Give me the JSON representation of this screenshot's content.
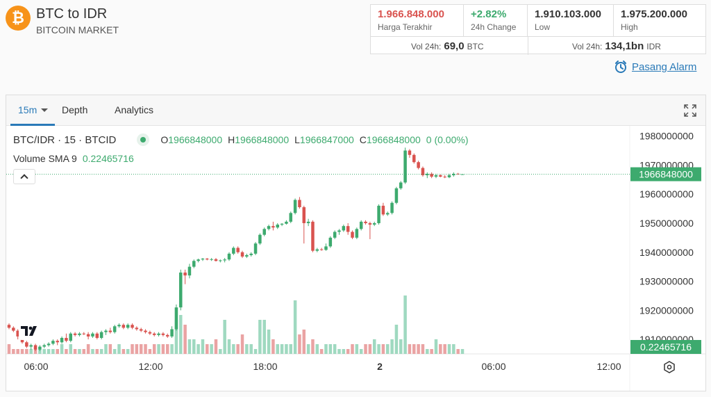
{
  "header": {
    "coin_symbol": "₿",
    "title": "BTC to IDR",
    "subtitle": "BITCOIN MARKET"
  },
  "stats": {
    "last_price": {
      "value": "1.966.848.000",
      "label": "Harga Terakhir"
    },
    "change": {
      "value": "+2.82%",
      "label": "24h Change"
    },
    "low": {
      "value": "1.910.103.000",
      "label": "Low"
    },
    "high": {
      "value": "1.975.200.000",
      "label": "High"
    },
    "vol_btc": {
      "label": "Vol 24h:",
      "value": "69,0",
      "unit": "BTC"
    },
    "vol_idr": {
      "label": "Vol 24h:",
      "value": "134,1bn",
      "unit": "IDR"
    }
  },
  "alarm": {
    "label": "Pasang Alarm",
    "icon": "alarm-clock-icon"
  },
  "toolbar": {
    "timeframe": "15m",
    "depth": "Depth",
    "analytics": "Analytics"
  },
  "legend": {
    "symbol": "BTC/IDR · 15 · BTCID",
    "o_label": "O",
    "o_value": "1966848000",
    "h_label": "H",
    "h_value": "1966848000",
    "l_label": "L",
    "l_value": "1966847000",
    "c_label": "C",
    "c_value": "1966848000",
    "change": "0 (0.00%)",
    "volume_label": "Volume SMA 9",
    "volume_value": "0.22465716"
  },
  "colors": {
    "up": "#3daa6e",
    "down": "#d9534f",
    "up_vol": "#9fd9c0",
    "down_vol": "#eaa3a3",
    "accent": "#2a7ab8"
  },
  "chart_data": {
    "type": "candlestick",
    "y_tick_labels": [
      "1980000000",
      "1970000000",
      "1960000000",
      "1950000000",
      "1940000000",
      "1930000000",
      "1920000000",
      "1910000000"
    ],
    "y_ticks": [
      1980000000,
      1970000000,
      1960000000,
      1950000000,
      1940000000,
      1930000000,
      1920000000,
      1910000000
    ],
    "ylim": [
      1905000000,
      1983500000
    ],
    "x_tick_labels": [
      "06:00",
      "12:00",
      "18:00",
      "2",
      "06:00",
      "12:00"
    ],
    "last_price_label": "1966848000",
    "volume_label": "0.22465716",
    "grid": false,
    "candles": [
      {
        "o": 1915000000,
        "h": 1915500000,
        "l": 1913500000,
        "c": 1914000000
      },
      {
        "o": 1914000000,
        "h": 1914500000,
        "l": 1912500000,
        "c": 1913000000
      },
      {
        "o": 1913000000,
        "h": 1913500000,
        "l": 1910000000,
        "c": 1911000000
      },
      {
        "o": 1911000000,
        "h": 1911500000,
        "l": 1908500000,
        "c": 1909000000
      },
      {
        "o": 1909000000,
        "h": 1909500000,
        "l": 1907000000,
        "c": 1907500000
      },
      {
        "o": 1907500000,
        "h": 1908500000,
        "l": 1906500000,
        "c": 1908000000
      },
      {
        "o": 1908000000,
        "h": 1908500000,
        "l": 1906000000,
        "c": 1906500000
      },
      {
        "o": 1906500000,
        "h": 1908000000,
        "l": 1906000000,
        "c": 1907500000
      },
      {
        "o": 1907500000,
        "h": 1908500000,
        "l": 1907000000,
        "c": 1908000000
      },
      {
        "o": 1908000000,
        "h": 1909000000,
        "l": 1907500000,
        "c": 1908500000
      },
      {
        "o": 1908500000,
        "h": 1910000000,
        "l": 1908000000,
        "c": 1909500000
      },
      {
        "o": 1909500000,
        "h": 1910000000,
        "l": 1908000000,
        "c": 1909000000
      },
      {
        "o": 1909000000,
        "h": 1911000000,
        "l": 1908500000,
        "c": 1910500000
      },
      {
        "o": 1910500000,
        "h": 1912000000,
        "l": 1909000000,
        "c": 1909500000
      },
      {
        "o": 1909500000,
        "h": 1912500000,
        "l": 1909000000,
        "c": 1912000000
      },
      {
        "o": 1912000000,
        "h": 1912500000,
        "l": 1911000000,
        "c": 1911500000
      },
      {
        "o": 1911500000,
        "h": 1912500000,
        "l": 1911000000,
        "c": 1912000000
      },
      {
        "o": 1912000000,
        "h": 1912500000,
        "l": 1911500000,
        "c": 1911800000
      },
      {
        "o": 1911800000,
        "h": 1912500000,
        "l": 1910000000,
        "c": 1911000000
      },
      {
        "o": 1911000000,
        "h": 1912500000,
        "l": 1910500000,
        "c": 1912000000
      },
      {
        "o": 1912000000,
        "h": 1912500000,
        "l": 1910000000,
        "c": 1910500000
      },
      {
        "o": 1910500000,
        "h": 1913000000,
        "l": 1910000000,
        "c": 1912500000
      },
      {
        "o": 1912500000,
        "h": 1913500000,
        "l": 1911500000,
        "c": 1913000000
      },
      {
        "o": 1913000000,
        "h": 1914000000,
        "l": 1912000000,
        "c": 1912500000
      },
      {
        "o": 1912500000,
        "h": 1915000000,
        "l": 1912000000,
        "c": 1914500000
      },
      {
        "o": 1914500000,
        "h": 1915500000,
        "l": 1914000000,
        "c": 1915000000
      },
      {
        "o": 1915000000,
        "h": 1915500000,
        "l": 1913500000,
        "c": 1914000000
      },
      {
        "o": 1914000000,
        "h": 1915500000,
        "l": 1913500000,
        "c": 1915000000
      },
      {
        "o": 1915000000,
        "h": 1915500000,
        "l": 1913500000,
        "c": 1914000000
      },
      {
        "o": 1914000000,
        "h": 1914500000,
        "l": 1913000000,
        "c": 1913500000
      },
      {
        "o": 1913500000,
        "h": 1914000000,
        "l": 1912500000,
        "c": 1913000000
      },
      {
        "o": 1913000000,
        "h": 1913500000,
        "l": 1912000000,
        "c": 1912500000
      },
      {
        "o": 1912500000,
        "h": 1913000000,
        "l": 1911500000,
        "c": 1912000000
      },
      {
        "o": 1912000000,
        "h": 1912500000,
        "l": 1911000000,
        "c": 1911500000
      },
      {
        "o": 1911500000,
        "h": 1912500000,
        "l": 1911000000,
        "c": 1912000000
      },
      {
        "o": 1912000000,
        "h": 1912500000,
        "l": 1911000000,
        "c": 1911500000
      },
      {
        "o": 1911500000,
        "h": 1912000000,
        "l": 1910500000,
        "c": 1911000000
      },
      {
        "o": 1911000000,
        "h": 1914500000,
        "l": 1910500000,
        "c": 1913500000
      },
      {
        "o": 1913500000,
        "h": 1922000000,
        "l": 1913000000,
        "c": 1921000000
      },
      {
        "o": 1921000000,
        "h": 1934000000,
        "l": 1920000000,
        "c": 1933000000
      },
      {
        "o": 1933000000,
        "h": 1934000000,
        "l": 1929000000,
        "c": 1932000000
      },
      {
        "o": 1932000000,
        "h": 1936000000,
        "l": 1931000000,
        "c": 1935000000
      },
      {
        "o": 1935000000,
        "h": 1937500000,
        "l": 1934500000,
        "c": 1937000000
      },
      {
        "o": 1937000000,
        "h": 1937800000,
        "l": 1936500000,
        "c": 1937500000
      },
      {
        "o": 1937500000,
        "h": 1938000000,
        "l": 1937000000,
        "c": 1937800000
      },
      {
        "o": 1937800000,
        "h": 1938000000,
        "l": 1937200000,
        "c": 1937500000
      },
      {
        "o": 1937500000,
        "h": 1938000000,
        "l": 1937000000,
        "c": 1937600000
      },
      {
        "o": 1937600000,
        "h": 1938000000,
        "l": 1936800000,
        "c": 1937000000
      },
      {
        "o": 1937000000,
        "h": 1937500000,
        "l": 1936500000,
        "c": 1937200000
      },
      {
        "o": 1937200000,
        "h": 1938000000,
        "l": 1936500000,
        "c": 1937500000
      },
      {
        "o": 1937500000,
        "h": 1940000000,
        "l": 1937000000,
        "c": 1939500000
      },
      {
        "o": 1939500000,
        "h": 1942000000,
        "l": 1939000000,
        "c": 1941500000
      },
      {
        "o": 1941500000,
        "h": 1942000000,
        "l": 1939500000,
        "c": 1940000000
      },
      {
        "o": 1940000000,
        "h": 1940500000,
        "l": 1938000000,
        "c": 1938500000
      },
      {
        "o": 1938500000,
        "h": 1939500000,
        "l": 1938000000,
        "c": 1939000000
      },
      {
        "o": 1939000000,
        "h": 1940000000,
        "l": 1938500000,
        "c": 1939500000
      },
      {
        "o": 1939500000,
        "h": 1943500000,
        "l": 1939000000,
        "c": 1943000000
      },
      {
        "o": 1943000000,
        "h": 1946500000,
        "l": 1942500000,
        "c": 1946000000
      },
      {
        "o": 1946000000,
        "h": 1948500000,
        "l": 1945500000,
        "c": 1948000000
      },
      {
        "o": 1948000000,
        "h": 1949500000,
        "l": 1947500000,
        "c": 1949000000
      },
      {
        "o": 1949000000,
        "h": 1950500000,
        "l": 1947500000,
        "c": 1948500000
      },
      {
        "o": 1948500000,
        "h": 1950000000,
        "l": 1948000000,
        "c": 1949500000
      },
      {
        "o": 1949500000,
        "h": 1950000000,
        "l": 1949000000,
        "c": 1949800000
      },
      {
        "o": 1949800000,
        "h": 1951000000,
        "l": 1949500000,
        "c": 1950500000
      },
      {
        "o": 1950500000,
        "h": 1954000000,
        "l": 1950000000,
        "c": 1953500000
      },
      {
        "o": 1953500000,
        "h": 1958500000,
        "l": 1953000000,
        "c": 1958000000
      },
      {
        "o": 1958000000,
        "h": 1959000000,
        "l": 1955000000,
        "c": 1955500000
      },
      {
        "o": 1955500000,
        "h": 1956000000,
        "l": 1943000000,
        "c": 1950000000
      },
      {
        "o": 1950000000,
        "h": 1951500000,
        "l": 1949000000,
        "c": 1950500000
      },
      {
        "o": 1950500000,
        "h": 1951000000,
        "l": 1940000000,
        "c": 1940500000
      },
      {
        "o": 1940500000,
        "h": 1941500000,
        "l": 1940000000,
        "c": 1941000000
      },
      {
        "o": 1941000000,
        "h": 1941500000,
        "l": 1940500000,
        "c": 1940800000
      },
      {
        "o": 1940800000,
        "h": 1943000000,
        "l": 1940500000,
        "c": 1942000000
      },
      {
        "o": 1942000000,
        "h": 1945500000,
        "l": 1941500000,
        "c": 1945000000
      },
      {
        "o": 1945000000,
        "h": 1947500000,
        "l": 1944500000,
        "c": 1947000000
      },
      {
        "o": 1947000000,
        "h": 1948000000,
        "l": 1946000000,
        "c": 1947500000
      },
      {
        "o": 1947500000,
        "h": 1949500000,
        "l": 1947000000,
        "c": 1949000000
      },
      {
        "o": 1949000000,
        "h": 1950000000,
        "l": 1946000000,
        "c": 1947000000
      },
      {
        "o": 1947000000,
        "h": 1947500000,
        "l": 1944500000,
        "c": 1945000000
      },
      {
        "o": 1945000000,
        "h": 1948500000,
        "l": 1944500000,
        "c": 1948000000
      },
      {
        "o": 1948000000,
        "h": 1951000000,
        "l": 1947500000,
        "c": 1950500000
      },
      {
        "o": 1950500000,
        "h": 1951000000,
        "l": 1949500000,
        "c": 1950000000
      },
      {
        "o": 1950000000,
        "h": 1950500000,
        "l": 1944500000,
        "c": 1949500000
      },
      {
        "o": 1949500000,
        "h": 1950500000,
        "l": 1949000000,
        "c": 1950000000
      },
      {
        "o": 1950000000,
        "h": 1956500000,
        "l": 1949500000,
        "c": 1956000000
      },
      {
        "o": 1956000000,
        "h": 1957000000,
        "l": 1952500000,
        "c": 1953000000
      },
      {
        "o": 1953000000,
        "h": 1954000000,
        "l": 1952500000,
        "c": 1953500000
      },
      {
        "o": 1953500000,
        "h": 1957500000,
        "l": 1953000000,
        "c": 1957000000
      },
      {
        "o": 1957000000,
        "h": 1962500000,
        "l": 1956500000,
        "c": 1962000000
      },
      {
        "o": 1962000000,
        "h": 1964500000,
        "l": 1961500000,
        "c": 1964000000
      },
      {
        "o": 1964000000,
        "h": 1976000000,
        "l": 1963500000,
        "c": 1975000000
      },
      {
        "o": 1975000000,
        "h": 1975500000,
        "l": 1972500000,
        "c": 1973500000
      },
      {
        "o": 1973500000,
        "h": 1974000000,
        "l": 1970500000,
        "c": 1971000000
      },
      {
        "o": 1971000000,
        "h": 1971500000,
        "l": 1968500000,
        "c": 1969000000
      },
      {
        "o": 1969000000,
        "h": 1969500000,
        "l": 1966000000,
        "c": 1966500000
      },
      {
        "o": 1966500000,
        "h": 1967500000,
        "l": 1965500000,
        "c": 1967000000
      },
      {
        "o": 1967000000,
        "h": 1967500000,
        "l": 1965500000,
        "c": 1966000000
      },
      {
        "o": 1966000000,
        "h": 1967000000,
        "l": 1965500000,
        "c": 1966500000
      },
      {
        "o": 1966500000,
        "h": 1966800000,
        "l": 1965800000,
        "c": 1966000000
      },
      {
        "o": 1966000000,
        "h": 1966500000,
        "l": 1965500000,
        "c": 1965800000
      },
      {
        "o": 1965800000,
        "h": 1967000000,
        "l": 1965500000,
        "c": 1966500000
      },
      {
        "o": 1966500000,
        "h": 1967500000,
        "l": 1966000000,
        "c": 1967000000
      },
      {
        "o": 1967000000,
        "h": 1967300000,
        "l": 1966700000,
        "c": 1966900000
      },
      {
        "o": 1966848000,
        "h": 1966848000,
        "l": 1966847000,
        "c": 1966848000
      }
    ],
    "volume": [
      2,
      1,
      1,
      1,
      1,
      1,
      1,
      1,
      1,
      1,
      1,
      1,
      2,
      1,
      2,
      1,
      1,
      1,
      2,
      1,
      1,
      1,
      2,
      2,
      1,
      2,
      1,
      1,
      2,
      2,
      2,
      2,
      1,
      2,
      2,
      2,
      2,
      2,
      7,
      8,
      6,
      3,
      3,
      2,
      3,
      2,
      2,
      3,
      1,
      7,
      3,
      2,
      2,
      4,
      2,
      2,
      1,
      7,
      7,
      5,
      3,
      2,
      2,
      2,
      2,
      11,
      4,
      5,
      2,
      3,
      2,
      1,
      2,
      2,
      2,
      1,
      1,
      1,
      2,
      2,
      1,
      2,
      2,
      3,
      2,
      2,
      2,
      3,
      6,
      3,
      12,
      2,
      2,
      2,
      2,
      1,
      1,
      3,
      2,
      2,
      2,
      2,
      1,
      1
    ]
  }
}
